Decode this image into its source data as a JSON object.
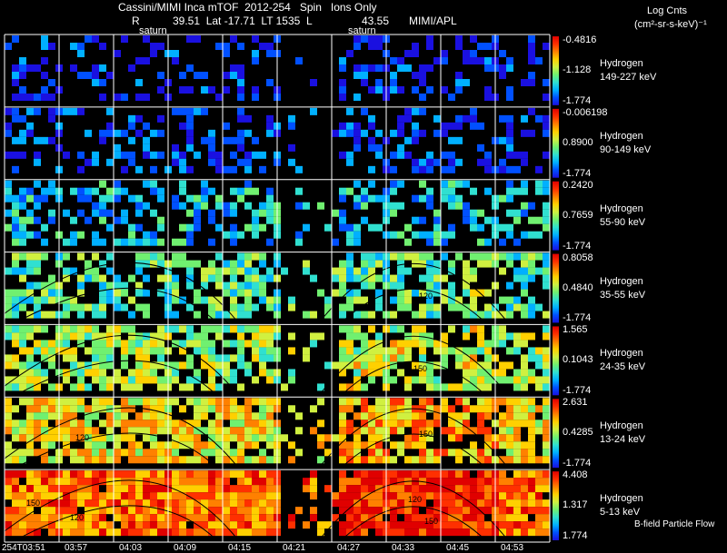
{
  "header": {
    "title": "Cassini/MIMI Inca mTOF  2012-254   Spin   Ions Only",
    "pos_r_label": "R",
    "pos_values": "39.51  Lat -17.71  LT 1535  L",
    "pos_l_value": "43.55",
    "source": "MIMI/APL",
    "saturn_label_1": "saturn",
    "saturn_label_2": "saturn",
    "units_line1": "Log Cnts",
    "units_line2": "(cm²-sr-s-keV)⁻¹",
    "footer_note": "B-field Particle Flow"
  },
  "colors": {
    "background": "#000000",
    "grid": "#ffffff",
    "colormap": [
      "#1a10e0",
      "#0050ff",
      "#00b0ff",
      "#30e0d0",
      "#70f070",
      "#d0f040",
      "#ffd000",
      "#ff8000",
      "#ff3000",
      "#e00000"
    ]
  },
  "chart_data": {
    "type": "heatmap",
    "title": "Cassini/MIMI Inca mTOF  2012-254   Spin   Ions Only",
    "x_ticks": [
      "254T03:51",
      "03:57",
      "04:03",
      "04:09",
      "04:15",
      "04:21",
      "04:27",
      "04:33",
      "04:45",
      "04:53"
    ],
    "species": "Hydrogen",
    "panels": [
      {
        "energy": "149-227 keV",
        "cbar_max": "-0.4816",
        "cbar_mid": "-1.128",
        "cbar_min": "-1.774",
        "level": 0.08
      },
      {
        "energy": "90-149 keV",
        "cbar_max": "-0.006198",
        "cbar_mid": "0.8900",
        "cbar_min": "-1.774",
        "level": 0.12
      },
      {
        "energy": "55-90 keV",
        "cbar_max": "0.2420",
        "cbar_mid": "0.7659",
        "cbar_min": "-1.774",
        "level": 0.28
      },
      {
        "energy": "35-55 keV",
        "cbar_max": "0.8058",
        "cbar_mid": "0.4840",
        "cbar_min": "-1.774",
        "level": 0.4
      },
      {
        "energy": "24-35 keV",
        "cbar_max": "1.565",
        "cbar_mid": "0.1043",
        "cbar_min": "-1.774",
        "level": 0.5
      },
      {
        "energy": "13-24 keV",
        "cbar_max": "2.631",
        "cbar_mid": "0.4285",
        "cbar_min": "-1.774",
        "level": 0.62
      },
      {
        "energy": "5-13 keV",
        "cbar_max": "4.408",
        "cbar_mid": "1.317",
        "cbar_min": "1.774",
        "level": 0.78
      }
    ],
    "contour_labels": [
      "30",
      "60",
      "90",
      "120",
      "150"
    ]
  }
}
